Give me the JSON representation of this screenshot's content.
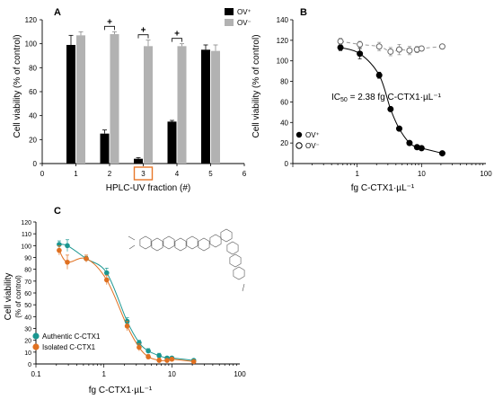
{
  "panels": {
    "a": "A",
    "b": "B",
    "c": "C"
  },
  "colors": {
    "ov_plus": "#000000",
    "ov_minus": "#b2b2b2",
    "highlight_box": "#e8782a",
    "authentic": "#1a9690",
    "isolated": "#e07020"
  },
  "chart_data": [
    {
      "panel": "A",
      "type": "bar",
      "xlabel": "HPLC-UV fraction (#)",
      "ylabel": "Cell viability (% of control)",
      "xlim": [
        0,
        6
      ],
      "ylim": [
        0,
        120
      ],
      "x_ticks": [
        "0",
        "1",
        "2",
        "3",
        "4",
        "5",
        "6"
      ],
      "y_ticks": [
        "0",
        "20",
        "40",
        "60",
        "80",
        "100",
        "120"
      ],
      "categories": [
        1,
        2,
        3,
        4,
        5
      ],
      "highlighted_category": 3,
      "series": [
        {
          "name": "OV⁺",
          "values": [
            99,
            25,
            4,
            35,
            95
          ],
          "errors": [
            8,
            3,
            1,
            1,
            4
          ]
        },
        {
          "name": "OV⁻",
          "values": [
            107,
            108,
            98,
            98,
            94
          ],
          "errors": [
            3,
            2,
            5,
            2,
            5
          ]
        }
      ],
      "significance": [
        {
          "category": 2,
          "label": "+"
        },
        {
          "category": 3,
          "label": "+"
        },
        {
          "category": 4,
          "label": "+"
        }
      ],
      "legend_position": "top-right"
    },
    {
      "panel": "B",
      "type": "scatter",
      "xscale": "log",
      "xlabel": "fg C-CTX1·µL⁻¹",
      "ylabel": "Cell viability (% of control)",
      "xlim": [
        0.1,
        100
      ],
      "ylim": [
        0,
        140
      ],
      "x_ticks": [
        "1",
        "10",
        "100"
      ],
      "y_ticks": [
        "0",
        "20",
        "40",
        "60",
        "80",
        "100",
        "120",
        "140"
      ],
      "annotation": {
        "prefix": "IC",
        "subscript": "50",
        "rest": " = 2.38 fg C-CTX1·µL⁻¹"
      },
      "series": [
        {
          "name": "OV⁺",
          "marker": "filled-circle",
          "fit": "solid",
          "x": [
            0.55,
            1.1,
            2.2,
            3.3,
            4.5,
            6.5,
            8.5,
            10,
            21
          ],
          "y": [
            113,
            107,
            86,
            53,
            34,
            20,
            16,
            15,
            10
          ],
          "errors": [
            3,
            5,
            3,
            2,
            2,
            2,
            1,
            1,
            1
          ]
        },
        {
          "name": "OV⁻",
          "marker": "open-circle",
          "fit": "dashed",
          "x": [
            0.55,
            1.1,
            2.2,
            3.3,
            4.5,
            6.5,
            8.5,
            10,
            21
          ],
          "y": [
            119,
            116,
            114,
            109,
            111,
            110,
            111,
            112,
            114
          ],
          "errors": [
            3,
            3,
            4,
            4,
            5,
            4,
            3,
            2,
            2
          ]
        }
      ],
      "legend_position": "bottom-left"
    },
    {
      "panel": "C",
      "type": "scatter",
      "xscale": "log",
      "xlabel": "fg C-CTX1·µL⁻¹",
      "ylabel": "Cell viability",
      "ylabel_sub": "(% of control)",
      "xlim": [
        0.1,
        100
      ],
      "ylim": [
        0,
        120
      ],
      "x_ticks": [
        "0.1",
        "1",
        "10",
        "100"
      ],
      "y_ticks": [
        "0",
        "10",
        "20",
        "30",
        "40",
        "50",
        "60",
        "70",
        "80",
        "90",
        "100",
        "110",
        "120"
      ],
      "series": [
        {
          "name": "Authentic C-CTX1",
          "marker": "filled-circle",
          "x": [
            0.22,
            0.29,
            0.55,
            1.1,
            2.2,
            3.3,
            4.5,
            6.5,
            8.5,
            10,
            21
          ],
          "y": [
            101,
            100,
            89,
            77,
            36,
            18,
            11,
            7,
            5,
            5,
            3
          ],
          "errors": [
            3,
            5,
            2,
            4,
            3,
            2,
            2,
            2,
            1,
            1,
            1
          ]
        },
        {
          "name": "Isolated C-CTX1",
          "marker": "filled-circle",
          "x": [
            0.22,
            0.29,
            0.55,
            1.1,
            2.2,
            3.3,
            4.5,
            6.5,
            8.5,
            10,
            21
          ],
          "y": [
            96,
            86,
            89,
            71,
            32,
            14,
            6,
            3,
            3,
            4,
            2
          ],
          "errors": [
            4,
            6,
            3,
            4,
            4,
            3,
            2,
            2,
            1,
            1,
            1
          ]
        }
      ],
      "legend_position": "bottom-left"
    }
  ]
}
